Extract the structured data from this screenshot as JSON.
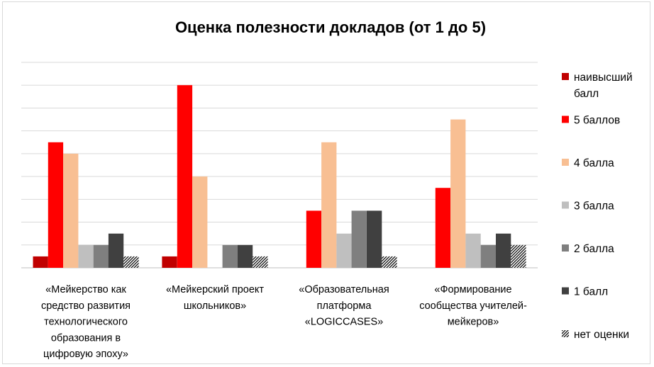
{
  "chart_data": {
    "type": "bar",
    "title": "Оценка полезности докладов (от 1 до 5)",
    "categories": [
      [
        "«Мейкерство как",
        "средство развития",
        "технологического",
        "образования в",
        "цифровую эпоху»"
      ],
      [
        "«Мейкерский проект",
        "школьников»"
      ],
      [
        "«Образовательная",
        "платформа",
        "«LOGICCASES»"
      ],
      [
        "«Формирование",
        "сообщества учителей-",
        "мейкеров»"
      ]
    ],
    "ylim": [
      0,
      9
    ],
    "grid": true,
    "legend": "right",
    "series": [
      {
        "name": [
          "наивысший",
          "балл"
        ],
        "color": "#c00000",
        "values": [
          0.5,
          0.5,
          0,
          0
        ]
      },
      {
        "name": [
          "5 баллов"
        ],
        "color": "#ff0000",
        "values": [
          5.5,
          8,
          2.5,
          3.5
        ]
      },
      {
        "name": [
          "4 балла"
        ],
        "color": "#f8bf93",
        "values": [
          5,
          4,
          5.5,
          6.5
        ]
      },
      {
        "name": [
          "3 балла"
        ],
        "color": "#bfbfbf",
        "values": [
          1,
          0,
          1.5,
          1.5
        ]
      },
      {
        "name": [
          "2 балла"
        ],
        "color": "#7f7f7f",
        "values": [
          1,
          1,
          2.5,
          1
        ]
      },
      {
        "name": [
          "1 балл"
        ],
        "color": "#404040",
        "values": [
          1.5,
          1,
          2.5,
          1.5
        ]
      },
      {
        "name": [
          "нет оценки"
        ],
        "color": "#000000",
        "pattern": "hatch",
        "values": [
          0.5,
          0.5,
          0.5,
          1
        ]
      }
    ]
  }
}
